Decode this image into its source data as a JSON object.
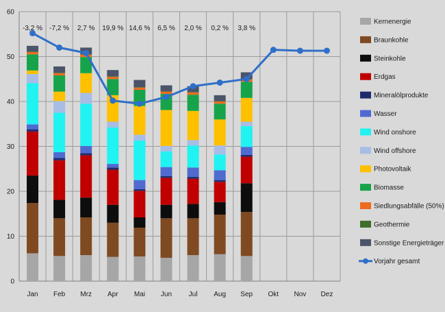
{
  "chart_data": {
    "type": "bar",
    "stacked": true,
    "categories": [
      "Jan",
      "Feb",
      "Mrz",
      "Apr",
      "Mai",
      "Jun",
      "Jul",
      "Aug",
      "Sep",
      "Okt",
      "Nov",
      "Dez"
    ],
    "ylim": [
      0,
      60
    ],
    "yticks": [
      0,
      10,
      20,
      30,
      40,
      50,
      60
    ],
    "grid": true,
    "legend_position": "right",
    "change_labels": [
      "-3,2 %",
      "-7,2 %",
      "2,7 %",
      "19,9 %",
      "14,6 %",
      "6,5 %",
      "2,0 %",
      "0,2 %",
      "3,8 %",
      "",
      "",
      ""
    ],
    "series": [
      {
        "name": "Kernenergie",
        "color": "#a6a6a6",
        "values": [
          6.2,
          5.6,
          5.8,
          5.4,
          5.5,
          5.2,
          5.8,
          6.0,
          5.6,
          null,
          null,
          null
        ]
      },
      {
        "name": "Braunkohle",
        "color": "#7f4a22",
        "values": [
          11.2,
          8.4,
          8.4,
          7.6,
          6.4,
          8.8,
          8.2,
          8.8,
          9.8,
          null,
          null,
          null
        ]
      },
      {
        "name": "Steinkohle",
        "color": "#0d0d0d",
        "values": [
          6.1,
          4.1,
          4.4,
          4.0,
          2.3,
          3.0,
          3.2,
          2.8,
          6.4,
          null,
          null,
          null
        ]
      },
      {
        "name": "Erdgas",
        "color": "#c00000",
        "values": [
          9.8,
          8.8,
          9.4,
          7.8,
          5.9,
          6.0,
          5.6,
          4.5,
          5.9,
          null,
          null,
          null
        ]
      },
      {
        "name": "Mineralölprodukte",
        "color": "#1f2a6b",
        "values": [
          0.5,
          0.5,
          0.5,
          0.5,
          0.4,
          0.4,
          0.4,
          0.4,
          0.4,
          null,
          null,
          null
        ]
      },
      {
        "name": "Wasser",
        "color": "#4f6bd0",
        "values": [
          1.1,
          1.3,
          1.6,
          0.8,
          2.0,
          2.0,
          2.1,
          2.2,
          1.8,
          null,
          null,
          null
        ]
      },
      {
        "name": "Wind onshore",
        "color": "#21f2f2",
        "values": [
          9.2,
          8.8,
          9.4,
          8.1,
          8.8,
          3.5,
          4.9,
          3.5,
          4.6,
          null,
          null,
          null
        ]
      },
      {
        "name": "Wind offshore",
        "color": "#a7bde6",
        "values": [
          2.0,
          2.6,
          2.4,
          1.3,
          1.3,
          1.2,
          1.2,
          2.0,
          1.0,
          null,
          null,
          null
        ]
      },
      {
        "name": "Photovoltaik",
        "color": "#ffc000",
        "values": [
          0.8,
          2.1,
          4.4,
          5.9,
          6.4,
          8.0,
          6.5,
          5.8,
          5.3,
          null,
          null,
          null
        ]
      },
      {
        "name": "Biomasse",
        "color": "#17a34a",
        "values": [
          3.6,
          3.6,
          3.6,
          3.6,
          3.6,
          3.6,
          3.6,
          3.5,
          3.6,
          null,
          null,
          null
        ]
      },
      {
        "name": "Siedlungsabfälle (50%)",
        "color": "#ed6a1f",
        "values": [
          0.5,
          0.5,
          0.5,
          0.5,
          0.5,
          0.5,
          0.5,
          0.5,
          0.5,
          null,
          null,
          null
        ]
      },
      {
        "name": "Geothermie",
        "color": "#3f6d2a",
        "values": [
          0.1,
          0.1,
          0.1,
          0.1,
          0.1,
          0.1,
          0.1,
          0.1,
          0.1,
          null,
          null,
          null
        ]
      },
      {
        "name": "Sonstige Energieträger",
        "color": "#4b5468",
        "values": [
          1.3,
          1.4,
          1.5,
          1.4,
          1.6,
          1.3,
          1.3,
          1.3,
          1.5,
          null,
          null,
          null
        ]
      }
    ],
    "line": {
      "name": "Vorjahr gesamt",
      "color": "#2f6fc9",
      "values": [
        55.2,
        52.0,
        50.8,
        40.2,
        39.5,
        41.0,
        43.4,
        44.2,
        45.0,
        51.5,
        51.3,
        51.3
      ]
    }
  }
}
